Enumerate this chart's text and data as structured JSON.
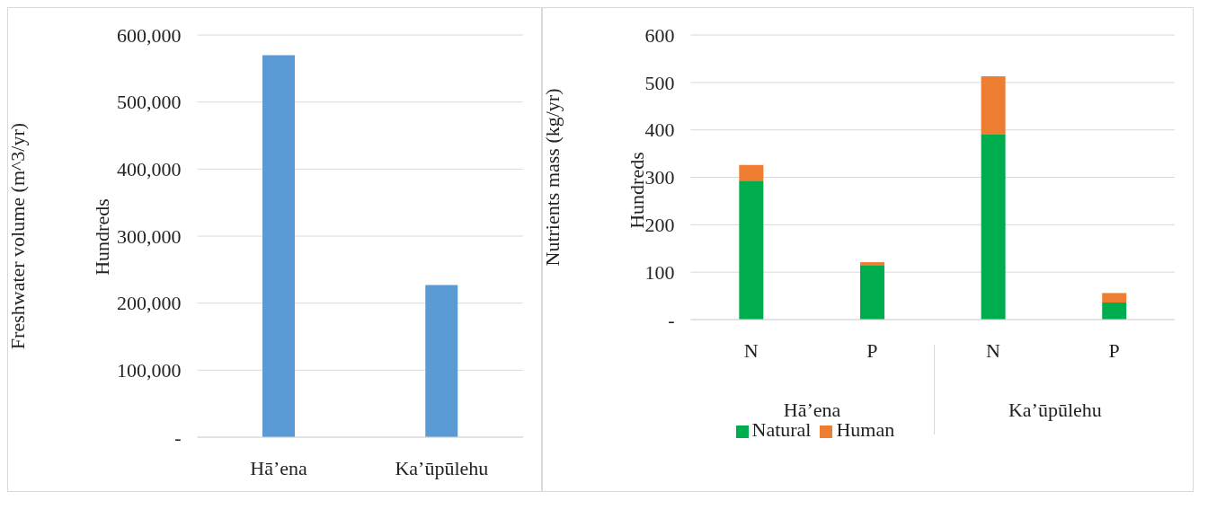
{
  "chart_data": [
    {
      "type": "bar",
      "ylabel": "Freshwater volume (m^3/yr)",
      "annotations": [
        "Hundreds"
      ],
      "categories": [
        "Hā’ena",
        "Ka’ūpūlehu"
      ],
      "values": [
        570000,
        227000
      ],
      "color": "#5b9bd5",
      "ylim": [
        0,
        600000
      ],
      "yticks": [
        {
          "value": 0,
          "label": "-"
        },
        {
          "value": 100000,
          "label": "100,000"
        },
        {
          "value": 200000,
          "label": "200,000"
        },
        {
          "value": 300000,
          "label": "300,000"
        },
        {
          "value": 400000,
          "label": "400,000"
        },
        {
          "value": 500000,
          "label": "500,000"
        },
        {
          "value": 600000,
          "label": "600,000"
        }
      ],
      "grid": "y"
    },
    {
      "type": "bar",
      "stacked": true,
      "ylabel": "Nutrients mass (kg/yr)",
      "annotations": [
        "Hundreds",
        "Hā’ena",
        "Ka’ūpūlehu"
      ],
      "categories": [
        "N",
        "P",
        "N",
        "P"
      ],
      "series": [
        {
          "name": "Natural",
          "color": "#00ad4e",
          "values": [
            293,
            115,
            390,
            36
          ]
        },
        {
          "name": "Human",
          "color": "#ed7d31",
          "values": [
            33,
            6,
            123,
            20
          ]
        }
      ],
      "ylim": [
        0,
        600
      ],
      "yticks": [
        {
          "value": 0,
          "label": "-"
        },
        100,
        200,
        300,
        400,
        500,
        600
      ],
      "grid": "y",
      "legend": "bottom"
    }
  ]
}
